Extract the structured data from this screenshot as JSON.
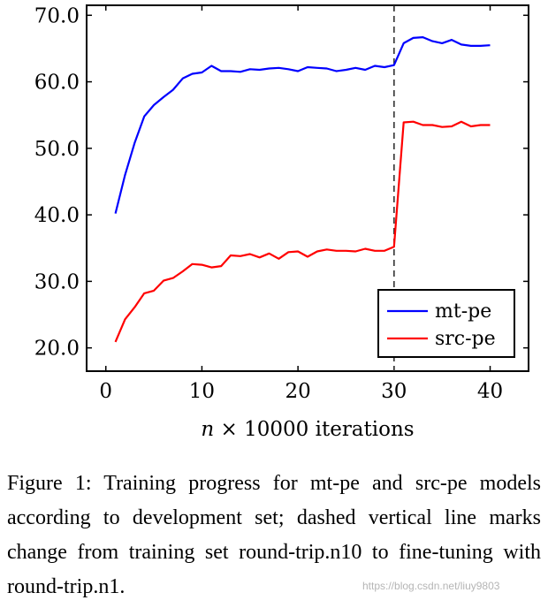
{
  "chart_data": {
    "type": "line",
    "xlabel": "n × 10000 iterations",
    "ylabel": "",
    "xlim": [
      -2,
      44
    ],
    "ylim": [
      16.5,
      71.5
    ],
    "xticks": [
      0,
      10,
      20,
      30,
      40
    ],
    "yticks": [
      20,
      30,
      40,
      50,
      60,
      70
    ],
    "ytick_labels": [
      "20.0",
      "30.0",
      "40.0",
      "50.0",
      "60.0",
      "70.0"
    ],
    "vline": {
      "x": 30,
      "style": "dashed"
    },
    "legend_position": "bottom-right",
    "series": [
      {
        "name": "mt-pe",
        "color": "#0000ff",
        "x": [
          1,
          2,
          3,
          4,
          5,
          6,
          7,
          8,
          9,
          10,
          11,
          12,
          13,
          14,
          15,
          16,
          17,
          18,
          19,
          20,
          21,
          22,
          23,
          24,
          25,
          26,
          27,
          28,
          29,
          30,
          31,
          32,
          33,
          34,
          35,
          36,
          37,
          38,
          39,
          40
        ],
        "values": [
          40.2,
          46.0,
          50.8,
          54.8,
          56.5,
          57.7,
          58.8,
          60.5,
          61.2,
          61.4,
          62.4,
          61.6,
          61.6,
          61.5,
          61.9,
          61.8,
          62.0,
          62.1,
          61.9,
          61.6,
          62.2,
          62.1,
          62.0,
          61.6,
          61.8,
          62.1,
          61.8,
          62.4,
          62.2,
          62.5,
          65.8,
          66.6,
          66.7,
          66.1,
          65.8,
          66.3,
          65.6,
          65.4,
          65.4,
          65.5
        ]
      },
      {
        "name": "src-pe",
        "color": "#ff0000",
        "x": [
          1,
          2,
          3,
          4,
          5,
          6,
          7,
          8,
          9,
          10,
          11,
          12,
          13,
          14,
          15,
          16,
          17,
          18,
          19,
          20,
          21,
          22,
          23,
          24,
          25,
          26,
          27,
          28,
          29,
          30,
          31,
          32,
          33,
          34,
          35,
          36,
          37,
          38,
          39,
          40
        ],
        "values": [
          20.9,
          24.3,
          26.1,
          28.2,
          28.6,
          30.1,
          30.5,
          31.5,
          32.6,
          32.5,
          32.1,
          32.3,
          33.9,
          33.8,
          34.1,
          33.6,
          34.2,
          33.4,
          34.4,
          34.5,
          33.7,
          34.5,
          34.8,
          34.6,
          34.6,
          34.5,
          34.9,
          34.6,
          34.6,
          35.2,
          53.9,
          54.0,
          53.5,
          53.5,
          53.2,
          53.3,
          54.0,
          53.3,
          53.5,
          53.5
        ]
      }
    ]
  },
  "caption": "Figure 1: Training progress for mt-pe and src-pe models according to development set; dashed vertical line marks change from training set round-trip.n10 to fine-tuning with round-trip.n1.",
  "watermark": "https://blog.csdn.net/liuy9803"
}
